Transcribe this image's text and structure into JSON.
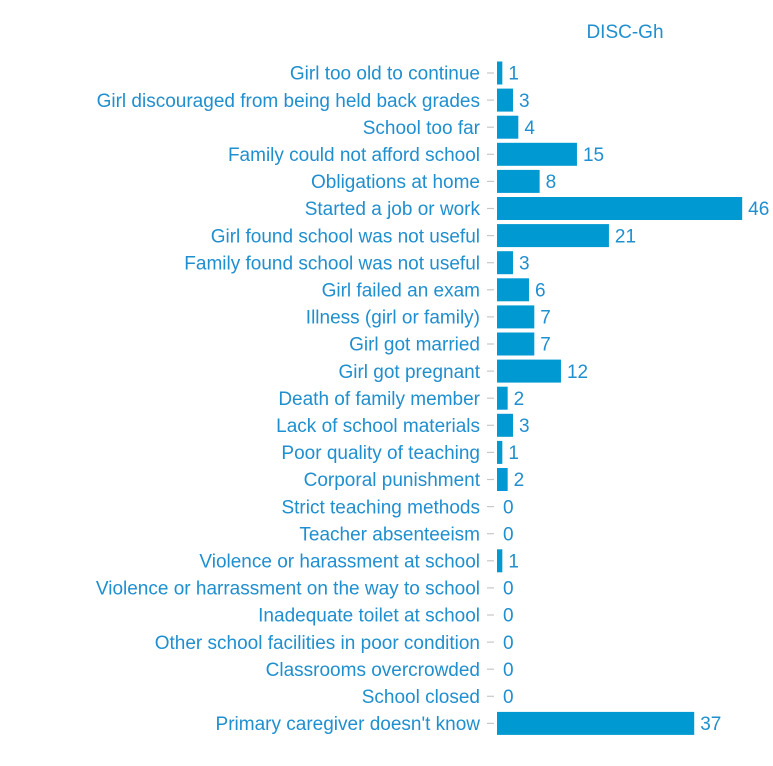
{
  "colors": {
    "bar": "#0099d1",
    "text": "#1f8fcf",
    "tick": "#c8c8c8",
    "background": "#ffffff"
  },
  "chart_data": {
    "type": "bar",
    "orientation": "horizontal",
    "panel_title": "DISC-Gh",
    "title": "",
    "xlabel": "",
    "ylabel": "",
    "grid": false,
    "xlim": [
      0,
      46
    ],
    "categories": [
      "Girl too old to continue",
      "Girl discouraged from being held back grades",
      "School too far",
      "Family could not afford school",
      "Obligations at home",
      "Started a job or work",
      "Girl found school was not useful",
      "Family found school was not useful",
      "Girl failed an exam",
      "Illness (girl or family)",
      "Girl got married",
      "Girl got pregnant",
      "Death of family member",
      "Lack of school materials",
      "Poor quality of teaching",
      "Corporal punishment",
      "Strict teaching methods",
      "Teacher absenteeism",
      "Violence or harassment at school",
      "Violence or harrassment on the way to school",
      "Inadequate toilet at school",
      "Other school facilities in poor condition",
      "Classrooms overcrowded",
      "School closed",
      "Primary caregiver doesn't know"
    ],
    "values": [
      1,
      3,
      4,
      15,
      8,
      46,
      21,
      3,
      6,
      7,
      7,
      12,
      2,
      3,
      1,
      2,
      0,
      0,
      1,
      0,
      0,
      0,
      0,
      0,
      37
    ],
    "data_labels": [
      "1",
      "3",
      "4",
      "15",
      "8",
      "46",
      "21",
      "3",
      "6",
      "7",
      "7",
      "12",
      "2",
      "3",
      "1",
      "2",
      "0",
      "0",
      "1",
      "0",
      "0",
      "0",
      "0",
      "0",
      "37"
    ]
  }
}
